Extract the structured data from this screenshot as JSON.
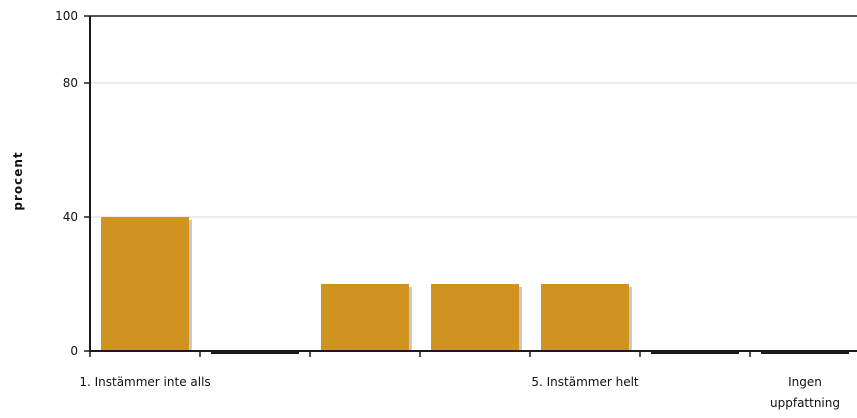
{
  "chart_data": {
    "type": "bar",
    "categories": [
      "1. Instämmer inte alls",
      "",
      "",
      "",
      "5. Instämmer helt",
      "",
      "Ingen uppfattning"
    ],
    "category_label_lines": [
      [
        "1. Instämmer inte alls"
      ],
      [],
      [],
      [],
      [
        "5. Instämmer helt"
      ],
      [],
      [
        "Ingen",
        "uppfattning"
      ]
    ],
    "values": [
      40,
      0,
      20,
      20,
      20,
      0,
      0
    ],
    "ylabel": "procent",
    "xlabel": "",
    "ylim": [
      0,
      100
    ],
    "yticks": [
      0,
      40,
      80,
      100
    ],
    "grid": true,
    "colors": {
      "bar": "#D09320",
      "bar_shadow": "#c9c9c9",
      "axis": "#1a1a1a",
      "grid": "#d8d8d8"
    }
  }
}
